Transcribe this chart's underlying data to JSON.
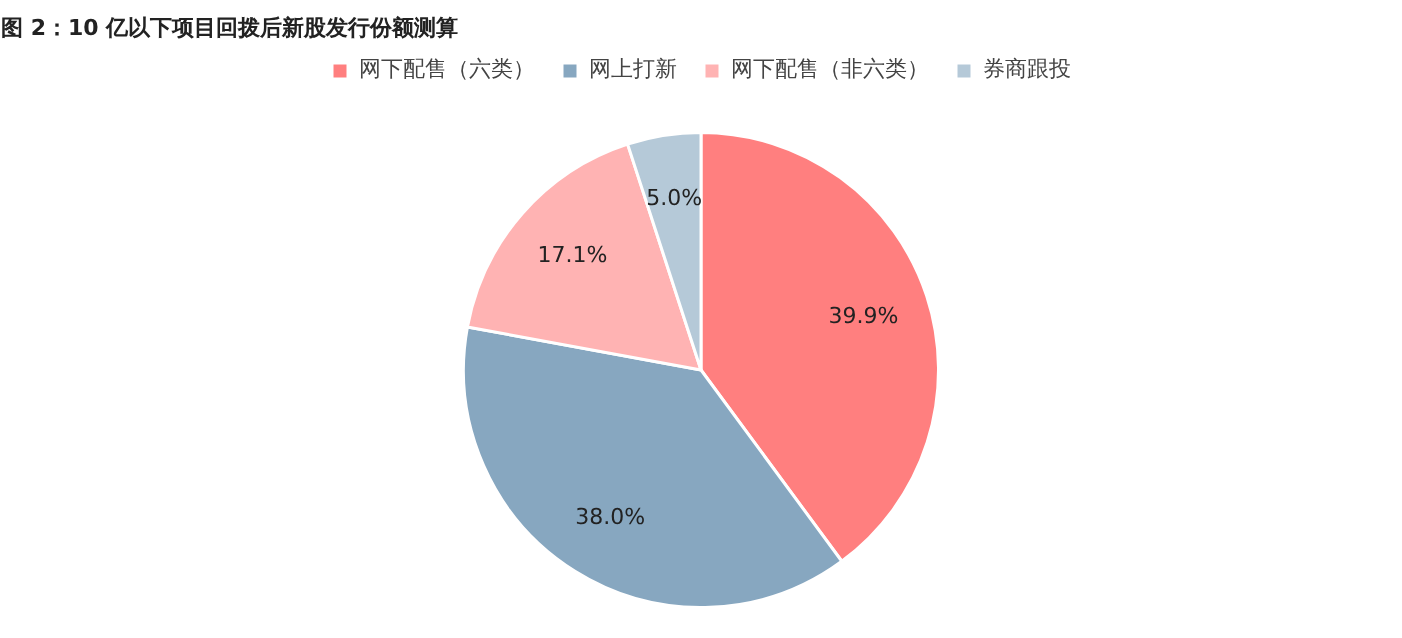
{
  "chart_data": {
    "type": "pie",
    "title": "图 2：10 亿以下项目回拨后新股发行份额测算",
    "categories": [
      "网下配售（六类）",
      "网上打新",
      "网下配售（非六类）",
      "券商跟投"
    ],
    "values": [
      39.9,
      38.0,
      17.1,
      5.0
    ],
    "colors": [
      "#ff7f7f",
      "#87a7c0",
      "#ffb3b3",
      "#b5c9d8"
    ],
    "value_labels": [
      "39.9%",
      "38.0%",
      "17.1%",
      "5.0%"
    ],
    "legend": "top"
  }
}
